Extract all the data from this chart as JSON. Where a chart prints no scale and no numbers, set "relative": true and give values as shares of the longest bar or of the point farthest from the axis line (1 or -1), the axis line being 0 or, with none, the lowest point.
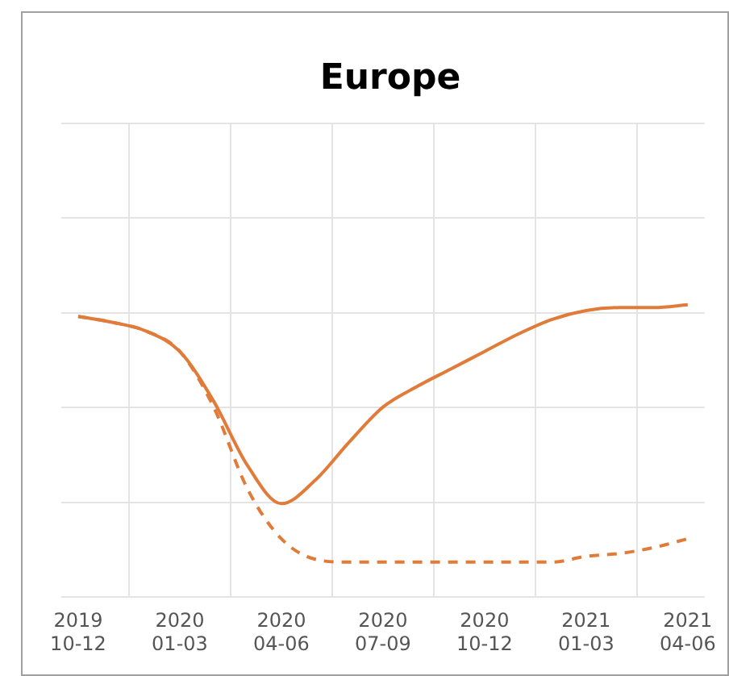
{
  "chart_data": {
    "type": "line",
    "title": "Europe",
    "relative": true,
    "grid": true,
    "legend": false,
    "marker": "none",
    "categories": [
      "2019\n10-12",
      null,
      null,
      "2020\n01-03",
      null,
      null,
      "2020\n04-06",
      null,
      null,
      "2020\n07-09",
      null,
      null,
      "2020\n10-12",
      null,
      null,
      "2021\n01-03",
      null,
      null,
      "2021\n04-06"
    ],
    "series": [
      {
        "color": "#e07b39",
        "line_style": "solid",
        "values": [
          0.96,
          0.94,
          0.91,
          0.84,
          0.67,
          0.45,
          0.32,
          0.4,
          0.53,
          0.65,
          0.72,
          0.78,
          0.84,
          0.9,
          0.95,
          0.98,
          0.99,
          0.99,
          1
        ]
      },
      {
        "color": "#e07b39",
        "line_style": "dashed",
        "values": [
          0.96,
          0.94,
          0.91,
          0.84,
          0.65,
          0.37,
          0.2,
          0.13,
          0.12,
          0.12,
          0.12,
          0.12,
          0.12,
          0.12,
          0.12,
          0.14,
          0.15,
          0.17,
          0.2
        ]
      }
    ]
  }
}
